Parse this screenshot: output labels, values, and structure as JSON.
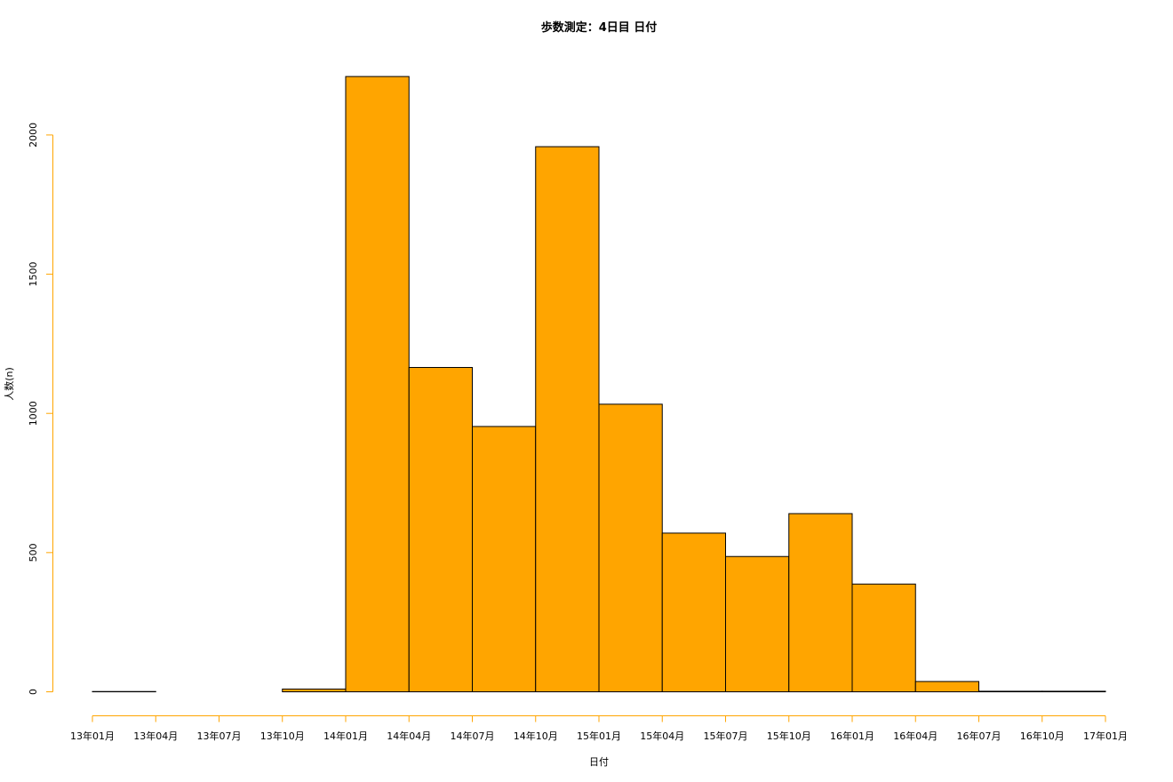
{
  "chart_data": {
    "type": "bar",
    "title": "歩数測定：4日目 日付",
    "xlabel": "日付",
    "ylabel": "人数(n)",
    "ylim": [
      0,
      2200
    ],
    "yticks": [
      0,
      500,
      1000,
      1500,
      2000
    ],
    "x_tick_labels": [
      "13年01月",
      "13年04月",
      "13年07月",
      "13年10月",
      "14年01月",
      "14年04月",
      "14年07月",
      "14年10月",
      "15年01月",
      "15年04月",
      "15年07月",
      "15年10月",
      "16年01月",
      "16年04月",
      "16年07月",
      "16年10月",
      "17年01月"
    ],
    "bins": [
      {
        "start": "13年01月",
        "end": "13年04月",
        "value": 1
      },
      {
        "start": "13年04月",
        "end": "13年07月",
        "value": 0
      },
      {
        "start": "13年07月",
        "end": "13年10月",
        "value": 0
      },
      {
        "start": "13年10月",
        "end": "14年01月",
        "value": 10
      },
      {
        "start": "14年01月",
        "end": "14年04月",
        "value": 2210
      },
      {
        "start": "14年04月",
        "end": "14年07月",
        "value": 1165
      },
      {
        "start": "14年07月",
        "end": "14年10月",
        "value": 953
      },
      {
        "start": "14年10月",
        "end": "15年01月",
        "value": 1958
      },
      {
        "start": "15年01月",
        "end": "15年04月",
        "value": 1033
      },
      {
        "start": "15年04月",
        "end": "15年07月",
        "value": 570
      },
      {
        "start": "15年07月",
        "end": "15年10月",
        "value": 486
      },
      {
        "start": "15年10月",
        "end": "16年01月",
        "value": 640
      },
      {
        "start": "16年01月",
        "end": "16年04月",
        "value": 387
      },
      {
        "start": "16年04月",
        "end": "16年07月",
        "value": 37
      },
      {
        "start": "16年07月",
        "end": "16年10月",
        "value": 2
      },
      {
        "start": "16年10月",
        "end": "17年01月",
        "value": 2
      }
    ],
    "colors": {
      "bar_fill": "#FFA500",
      "bar_stroke": "#000000",
      "axis": "#FFA500"
    }
  }
}
